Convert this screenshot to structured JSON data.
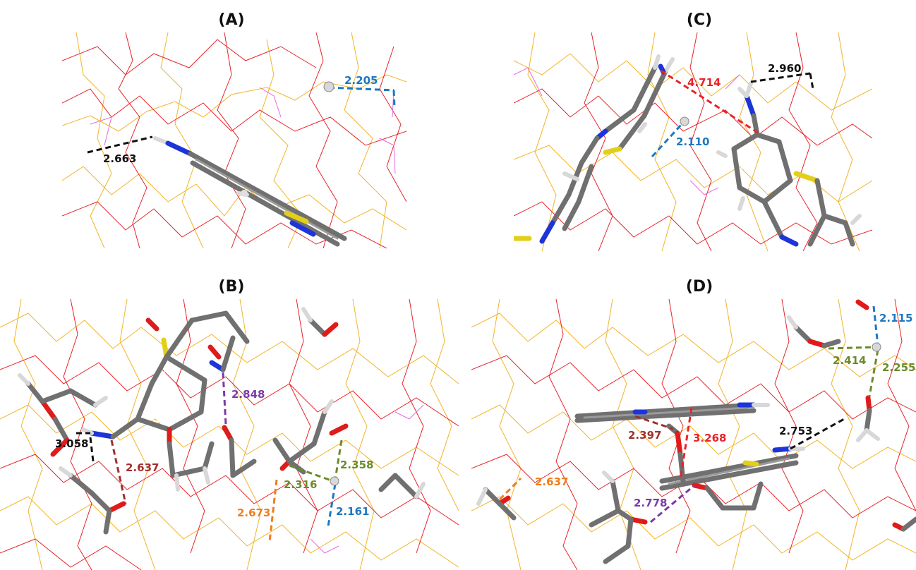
{
  "panels": [
    {
      "id": "A",
      "title": "(A)",
      "distances": [
        {
          "label": "2.205",
          "color": "#1b78c0"
        },
        {
          "label": "2.663",
          "color": "#111111"
        }
      ]
    },
    {
      "id": "C",
      "title": "(C)",
      "distances": [
        {
          "label": "4.714",
          "color": "#e8232a"
        },
        {
          "label": "2.960",
          "color": "#111111"
        },
        {
          "label": "2.110",
          "color": "#1b78c0"
        }
      ]
    },
    {
      "id": "B",
      "title": "(B)",
      "distances": [
        {
          "label": "2.848",
          "color": "#7b3aa8"
        },
        {
          "label": "3.058",
          "color": "#111111"
        },
        {
          "label": "2.637",
          "color": "#a0302e"
        },
        {
          "label": "2.358",
          "color": "#6a8b2a"
        },
        {
          "label": "2.316",
          "color": "#6a8b2a"
        },
        {
          "label": "2.673",
          "color": "#ef7d1a"
        },
        {
          "label": "2.161",
          "color": "#1b78c0"
        }
      ]
    },
    {
      "id": "D",
      "title": "(D)",
      "distances": [
        {
          "label": "2.115",
          "color": "#1b78c0"
        },
        {
          "label": "2.414",
          "color": "#6a8b2a"
        },
        {
          "label": "2.255",
          "color": "#6a8b2a"
        },
        {
          "label": "2.397",
          "color": "#a0302e"
        },
        {
          "label": "3.268",
          "color": "#e8232a"
        },
        {
          "label": "2.753",
          "color": "#111111"
        },
        {
          "label": "2.637",
          "color": "#ef7d1a"
        },
        {
          "label": "2.778",
          "color": "#7b3aa8"
        }
      ]
    }
  ]
}
